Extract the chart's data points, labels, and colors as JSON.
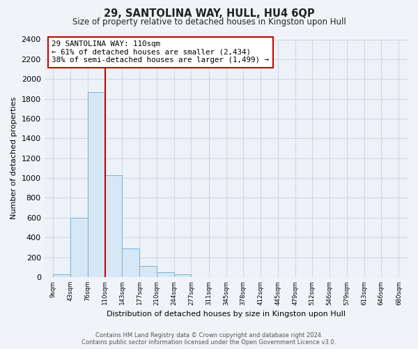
{
  "title": "29, SANTOLINA WAY, HULL, HU4 6QP",
  "subtitle": "Size of property relative to detached houses in Kingston upon Hull",
  "xlabel": "Distribution of detached houses by size in Kingston upon Hull",
  "ylabel": "Number of detached properties",
  "bar_edges": [
    9,
    43,
    76,
    110,
    143,
    177,
    210,
    244,
    277,
    311,
    345,
    378,
    412,
    445,
    479,
    512,
    546,
    579,
    613,
    646,
    680
  ],
  "bar_heights": [
    25,
    600,
    1870,
    1030,
    290,
    110,
    50,
    25,
    0,
    0,
    0,
    0,
    0,
    0,
    0,
    0,
    0,
    0,
    0,
    0
  ],
  "bar_color": "#d6e8f5",
  "bar_edgecolor": "#7bafd4",
  "vline_x": 110,
  "vline_color": "#cc0000",
  "ylim": [
    0,
    2400
  ],
  "yticks": [
    0,
    200,
    400,
    600,
    800,
    1000,
    1200,
    1400,
    1600,
    1800,
    2000,
    2200,
    2400
  ],
  "annotation_text": "29 SANTOLINA WAY: 110sqm\n← 61% of detached houses are smaller (2,434)\n38% of semi-detached houses are larger (1,499) →",
  "annotation_box_facecolor": "#ffffff",
  "annotation_box_edgecolor": "#cc0000",
  "footer_line1": "Contains HM Land Registry data © Crown copyright and database right 2024.",
  "footer_line2": "Contains public sector information licensed under the Open Government Licence v3.0.",
  "tick_labels": [
    "9sqm",
    "43sqm",
    "76sqm",
    "110sqm",
    "143sqm",
    "177sqm",
    "210sqm",
    "244sqm",
    "277sqm",
    "311sqm",
    "345sqm",
    "378sqm",
    "412sqm",
    "445sqm",
    "479sqm",
    "512sqm",
    "546sqm",
    "579sqm",
    "613sqm",
    "646sqm",
    "680sqm"
  ],
  "figure_bg": "#f0f4f8",
  "axes_bg": "#edf2f8",
  "grid_color": "#d0d8e4"
}
